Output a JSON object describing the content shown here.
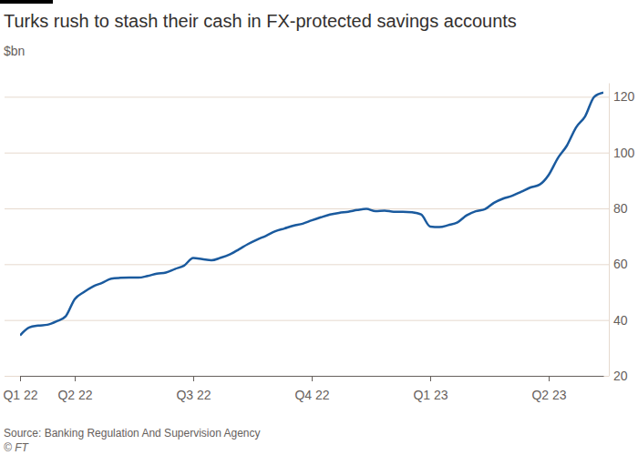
{
  "chart_data": {
    "type": "line",
    "title": "Turks rush to stash their cash in FX-protected savings accounts",
    "subtitle": "$bn",
    "source": "Source: Banking Regulation And Supervision Agency",
    "credit": "© FT",
    "categories": [
      "Q1 22",
      null,
      null,
      null,
      null,
      null,
      "Q2 22",
      null,
      null,
      null,
      null,
      null,
      null,
      null,
      null,
      null,
      null,
      null,
      null,
      "Q3 22",
      null,
      null,
      null,
      null,
      null,
      null,
      null,
      null,
      null,
      null,
      null,
      null,
      "Q4 22",
      null,
      null,
      null,
      null,
      null,
      null,
      null,
      null,
      null,
      null,
      null,
      null,
      "Q1 23",
      null,
      null,
      null,
      null,
      null,
      null,
      null,
      null,
      null,
      null,
      null,
      null,
      "Q2 23",
      null,
      null,
      null,
      null,
      null,
      null
    ],
    "values": [
      34.5,
      37.3,
      38.0,
      38.3,
      39.5,
      41.3,
      47.5,
      50.0,
      52.0,
      53.3,
      54.8,
      55.1,
      55.2,
      55.2,
      55.8,
      56.6,
      57.0,
      58.3,
      59.5,
      62.2,
      61.8,
      61.4,
      62.3,
      63.5,
      65.3,
      67.2,
      68.8,
      70.2,
      71.8,
      72.8,
      73.8,
      74.5,
      75.7,
      76.8,
      77.8,
      78.4,
      78.8,
      79.4,
      79.8,
      79.0,
      79.2,
      78.8,
      78.8,
      78.6,
      77.8,
      73.5,
      73.3,
      74.0,
      75.0,
      77.5,
      79.0,
      79.7,
      82.0,
      83.5,
      84.5,
      86.0,
      87.5,
      88.5,
      92.0,
      98.0,
      102.5,
      109.0,
      113.0,
      120.0,
      121.5
    ],
    "color": "#1a5a9e",
    "ylim": [
      20,
      125
    ],
    "yticks": [
      20,
      40,
      60,
      80,
      100,
      120
    ],
    "grid": true
  }
}
